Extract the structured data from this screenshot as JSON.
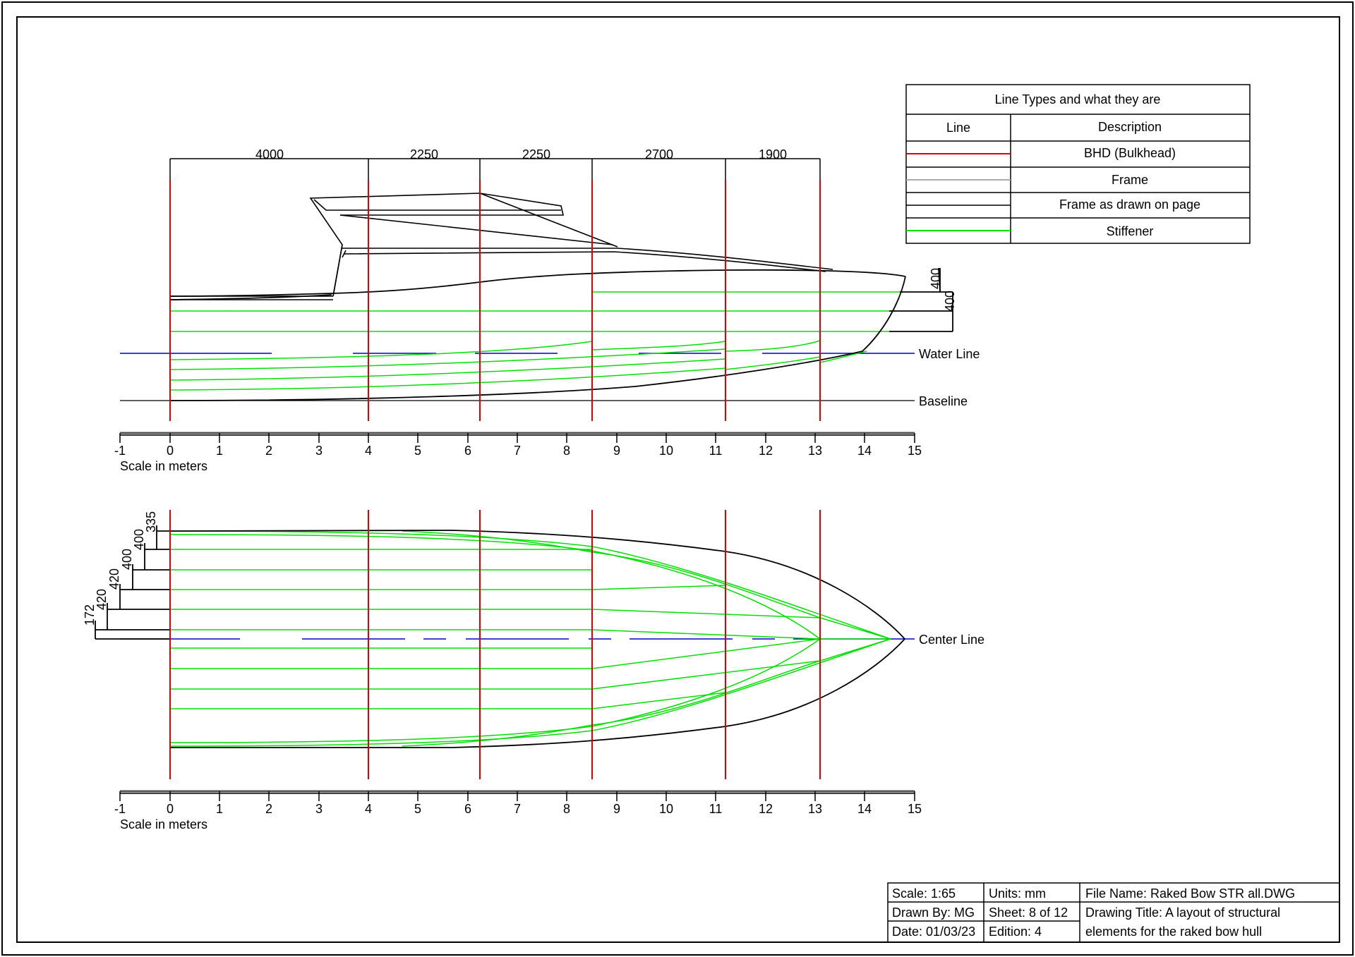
{
  "dimensions": [
    "4000",
    "2250",
    "2250",
    "2700",
    "1900"
  ],
  "side_heights": [
    "400",
    "400"
  ],
  "plan_widths": [
    "335",
    "400",
    "400",
    "420",
    "420",
    "172"
  ],
  "labels": {
    "water_line": "Water Line",
    "baseline": "Baseline",
    "center_line": "Center Line"
  },
  "scale": {
    "caption": "Scale in meters",
    "ticks": [
      "-1",
      "0",
      "1",
      "2",
      "3",
      "4",
      "5",
      "6",
      "7",
      "8",
      "9",
      "10",
      "11",
      "12",
      "13",
      "14",
      "15"
    ]
  },
  "legend": {
    "title": "Line Types and what they are",
    "col_line": "Line",
    "col_desc": "Description",
    "rows": [
      {
        "desc": "BHD (Bulkhead)",
        "color": "#e00000"
      },
      {
        "desc": "Frame",
        "color": "#aaaaaa"
      },
      {
        "desc": "Frame as drawn on page",
        "color": "#000000"
      },
      {
        "desc": "Stiffener",
        "color": "#00e000"
      }
    ]
  },
  "title_block": {
    "scale": "Scale: 1:65",
    "units": "Units: mm",
    "file_name": "File Name: Raked Bow STR all.DWG",
    "drawn_by": "Drawn By: MG",
    "sheet": "Sheet: 8 of 12",
    "drawing_title_1": "Drawing Title: A layout of structural",
    "drawing_title_2": "elements for the raked bow hull",
    "date": "Date: 01/03/23",
    "edition": "Edition: 4"
  },
  "colors": {
    "bulkhead": "#e00000",
    "stiffener": "#00e000",
    "waterline": "#0000c8",
    "outline": "#000000"
  }
}
